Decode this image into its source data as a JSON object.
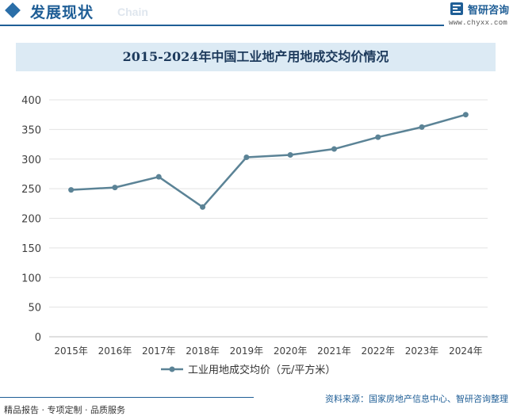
{
  "header": {
    "section_title": "发展现状",
    "section_subtitle": "Chain",
    "logo_text": "智研咨询",
    "logo_url": "www.chyxx.com",
    "accent_color": "#1f5e96"
  },
  "chart_data": {
    "type": "line",
    "title": "2015-2024年中国工业地产用地成交均价情况",
    "categories": [
      "2015年",
      "2016年",
      "2017年",
      "2018年",
      "2019年",
      "2020年",
      "2021年",
      "2022年",
      "2023年",
      "2024年"
    ],
    "series": [
      {
        "name": "工业用地成交均价（元/平方米）",
        "values": [
          248,
          252,
          270,
          219,
          303,
          307,
          317,
          337,
          354,
          375
        ],
        "color": "#5b8396"
      }
    ],
    "ylim": [
      0,
      400
    ],
    "yticks": [
      0,
      50,
      100,
      150,
      200,
      250,
      300,
      350,
      400
    ],
    "grid": true,
    "legend": "bottom-center"
  },
  "footer": {
    "left_text": "精品报告 · 专项定制 · 品质服务",
    "source": "资料来源：国家房地产信息中心、智研咨询整理"
  }
}
